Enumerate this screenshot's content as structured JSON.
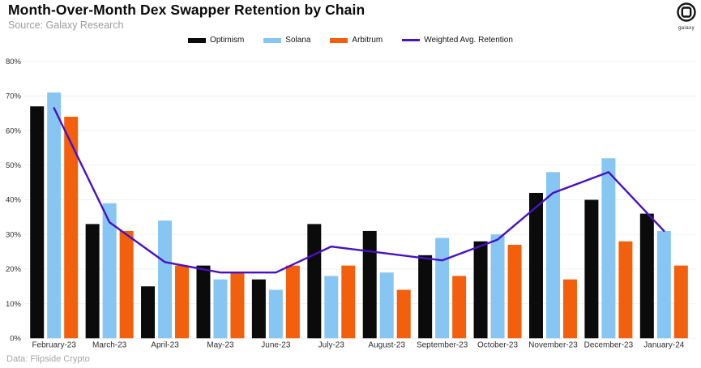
{
  "header": {
    "title": "Month-Over-Month Dex Swapper Retention by Chain",
    "source": "Source: Galaxy Research",
    "logo_label": "galaxy"
  },
  "footer": {
    "data_source": "Data: Flipside Crypto"
  },
  "colors": {
    "optimism": "#0b0b0b",
    "solana": "#87c6f2",
    "arbitrum": "#f2600d",
    "weighted_avg": "#4711c4",
    "grid": "#f1f1f1",
    "axis_text": "#2f2f2f",
    "logo": "#141414"
  },
  "chart_data": {
    "type": "grouped-bar+line",
    "title": "Month-Over-Month Dex Swapper Retention by Chain",
    "categories": [
      "February-23",
      "March-23",
      "April-23",
      "May-23",
      "June-23",
      "July-23",
      "August-23",
      "September-23",
      "October-23",
      "November-23",
      "December-23",
      "January-24"
    ],
    "series": [
      {
        "name": "Optimism",
        "type": "bar",
        "color_key": "optimism",
        "values": [
          67,
          33,
          15,
          21,
          17,
          33,
          31,
          24,
          28,
          42,
          40,
          36
        ]
      },
      {
        "name": "Solana",
        "type": "bar",
        "color_key": "solana",
        "values": [
          71,
          39,
          34,
          17,
          14,
          18,
          19,
          29,
          30,
          48,
          52,
          31
        ]
      },
      {
        "name": "Arbitrum",
        "type": "bar",
        "color_key": "arbitrum",
        "values": [
          64,
          31,
          21,
          19,
          21,
          21,
          14,
          18,
          27,
          17,
          28,
          21
        ]
      },
      {
        "name": "Weighted Avg. Retention",
        "type": "line",
        "color_key": "weighted_avg",
        "values": [
          66.5,
          33.5,
          22,
          19,
          19,
          26.5,
          24.5,
          22.5,
          28.5,
          42,
          48,
          31
        ]
      }
    ],
    "xlabel": "",
    "ylabel": "",
    "ylim": [
      0,
      80
    ],
    "ytick_step": 10,
    "ytick_suffix": "%",
    "grid": true,
    "legend_position": "top-center"
  }
}
